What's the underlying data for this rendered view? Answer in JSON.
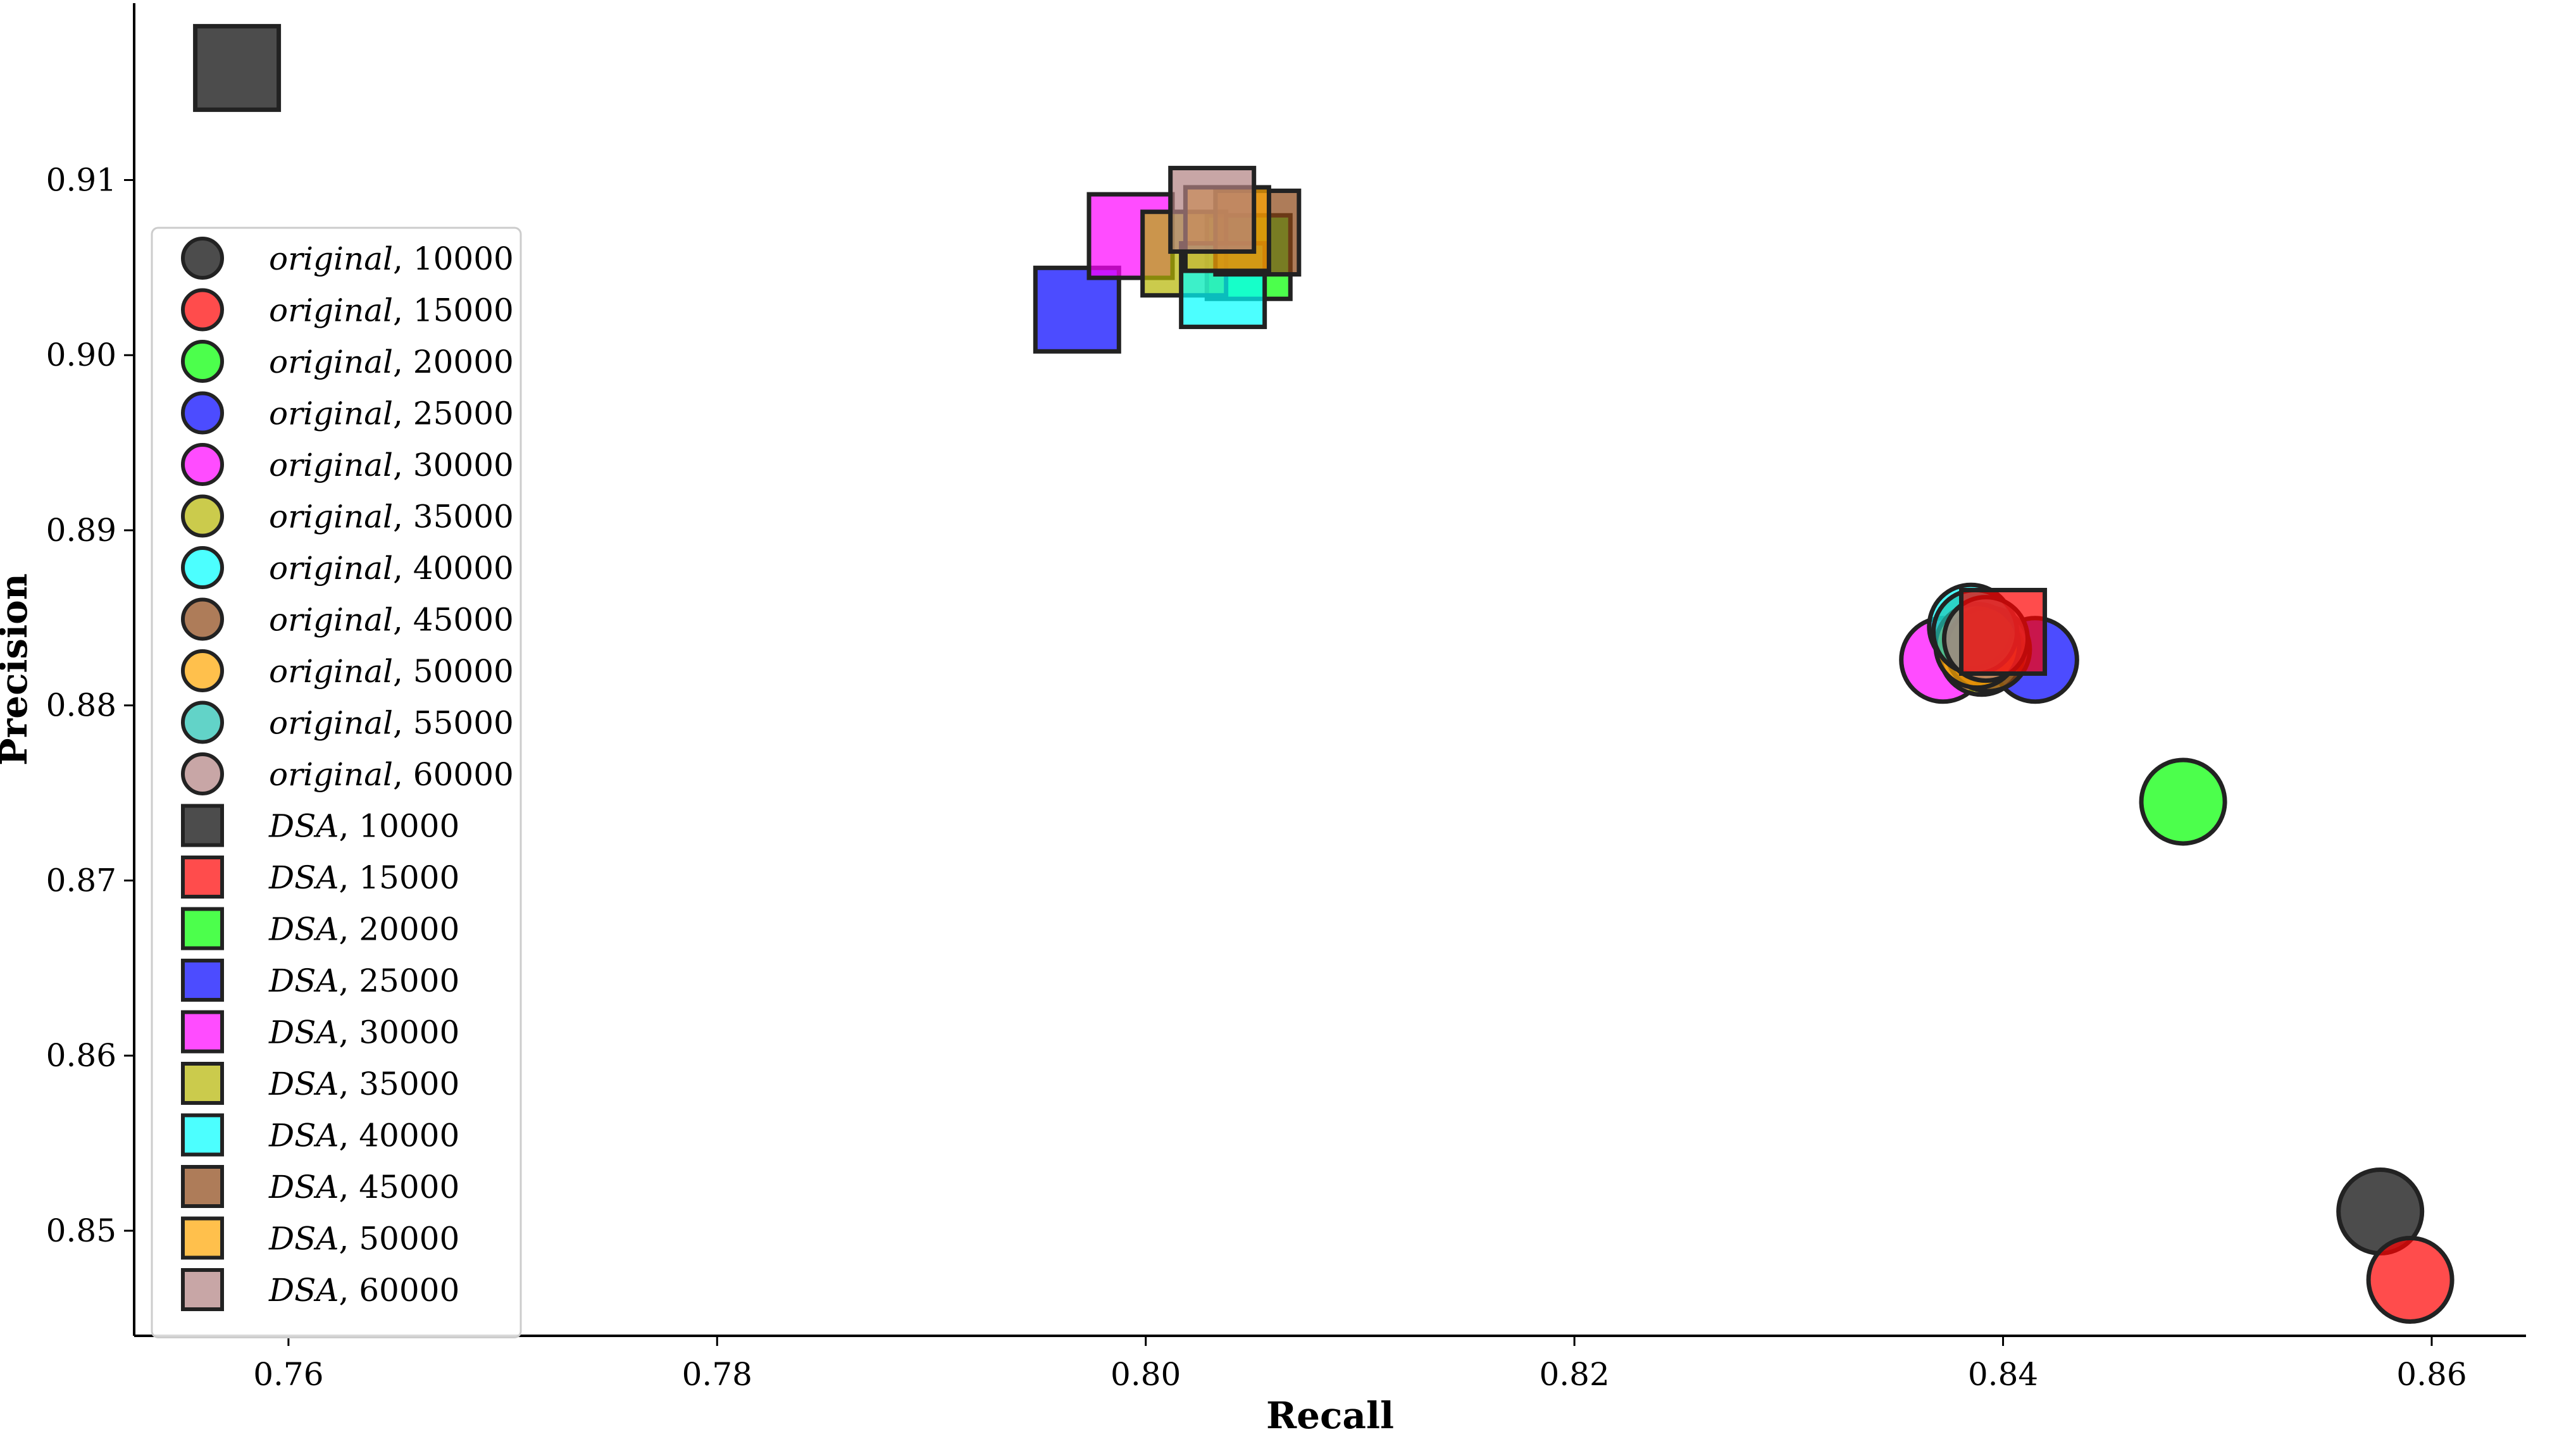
{
  "chart_data": {
    "type": "scatter",
    "title": "",
    "xlabel": "Recall",
    "ylabel": "Precision",
    "xlim": [
      0.7528,
      0.8644
    ],
    "ylim": [
      0.844,
      0.9201
    ],
    "xticks": [
      0.76,
      0.78,
      0.8,
      0.82,
      0.84,
      0.86
    ],
    "xtick_labels": [
      "0.76",
      "0.78",
      "0.80",
      "0.82",
      "0.84",
      "0.86"
    ],
    "yticks": [
      0.85,
      0.86,
      0.87,
      0.88,
      0.89,
      0.9,
      0.91
    ],
    "ytick_labels": [
      "0.85",
      "0.86",
      "0.87",
      "0.88",
      "0.89",
      "0.90",
      "0.91"
    ],
    "grid": false,
    "legend_position": "left",
    "series": [
      {
        "name": "original, 10000",
        "label_italic": "original",
        "label_num": ", 10000",
        "marker": "circle",
        "color": "#000000",
        "x": 0.8576,
        "y": 0.8511
      },
      {
        "name": "original, 15000",
        "label_italic": "original",
        "label_num": ", 15000",
        "marker": "circle",
        "color": "#ff0000",
        "x": 0.859,
        "y": 0.8472
      },
      {
        "name": "original, 20000",
        "label_italic": "original",
        "label_num": ", 20000",
        "marker": "circle",
        "color": "#00ff00",
        "x": 0.8484,
        "y": 0.8745
      },
      {
        "name": "original, 25000",
        "label_italic": "original",
        "label_num": ", 25000",
        "marker": "circle",
        "color": "#0000ff",
        "x": 0.8415,
        "y": 0.8826
      },
      {
        "name": "original, 30000",
        "label_italic": "original",
        "label_num": ", 30000",
        "marker": "circle",
        "color": "#ff00ff",
        "x": 0.8372,
        "y": 0.8826
      },
      {
        "name": "original, 35000",
        "label_italic": "original",
        "label_num": ", 35000",
        "marker": "circle",
        "color": "#b5b500",
        "x": 0.839,
        "y": 0.883
      },
      {
        "name": "original, 40000",
        "label_italic": "original",
        "label_num": ", 40000",
        "marker": "circle",
        "color": "#00ffff",
        "x": 0.8385,
        "y": 0.8845
      },
      {
        "name": "original, 45000",
        "label_italic": "original",
        "label_num": ", 45000",
        "marker": "circle",
        "color": "#8b4513",
        "x": 0.8393,
        "y": 0.8832
      },
      {
        "name": "original, 50000",
        "label_italic": "original",
        "label_num": ", 50000",
        "marker": "circle",
        "color": "#ffa500",
        "x": 0.8388,
        "y": 0.8834
      },
      {
        "name": "original, 55000",
        "label_italic": "original",
        "label_num": ", 55000",
        "marker": "circle",
        "color": "#20c0b0",
        "x": 0.8387,
        "y": 0.8842
      },
      {
        "name": "original, 60000",
        "label_italic": "original",
        "label_num": ", 60000",
        "marker": "circle",
        "color": "#b08080",
        "x": 0.8392,
        "y": 0.8838
      },
      {
        "name": "DSA, 10000",
        "label_italic": "DSA",
        "label_num": ", 10000",
        "marker": "square",
        "color": "#000000",
        "x": 0.7576,
        "y": 0.9164
      },
      {
        "name": "DSA, 15000",
        "label_italic": "DSA",
        "label_num": ", 15000",
        "marker": "square",
        "color": "#ff0000",
        "x": 0.84,
        "y": 0.8842
      },
      {
        "name": "DSA, 20000",
        "label_italic": "DSA",
        "label_num": ", 20000",
        "marker": "square",
        "color": "#00ff00",
        "x": 0.8048,
        "y": 0.9056
      },
      {
        "name": "DSA, 25000",
        "label_italic": "DSA",
        "label_num": ", 25000",
        "marker": "square",
        "color": "#0000ff",
        "x": 0.7968,
        "y": 0.9026
      },
      {
        "name": "DSA, 30000",
        "label_italic": "DSA",
        "label_num": ", 30000",
        "marker": "square",
        "color": "#ff00ff",
        "x": 0.7993,
        "y": 0.9068
      },
      {
        "name": "DSA, 35000",
        "label_italic": "DSA",
        "label_num": ", 35000",
        "marker": "square",
        "color": "#b5b500",
        "x": 0.8018,
        "y": 0.9058
      },
      {
        "name": "DSA, 40000",
        "label_italic": "DSA",
        "label_num": ", 40000",
        "marker": "square",
        "color": "#00ffff",
        "x": 0.8036,
        "y": 0.904
      },
      {
        "name": "DSA, 45000",
        "label_italic": "DSA",
        "label_num": ", 45000",
        "marker": "square",
        "color": "#8b4513",
        "x": 0.8052,
        "y": 0.907
      },
      {
        "name": "DSA, 50000",
        "label_italic": "DSA",
        "label_num": ", 50000",
        "marker": "square",
        "color": "#ffa500",
        "x": 0.8038,
        "y": 0.9072
      },
      {
        "name": "DSA, 60000",
        "label_italic": "DSA",
        "label_num": ", 60000",
        "marker": "square",
        "color": "#b08080",
        "x": 0.8031,
        "y": 0.9083
      }
    ]
  }
}
